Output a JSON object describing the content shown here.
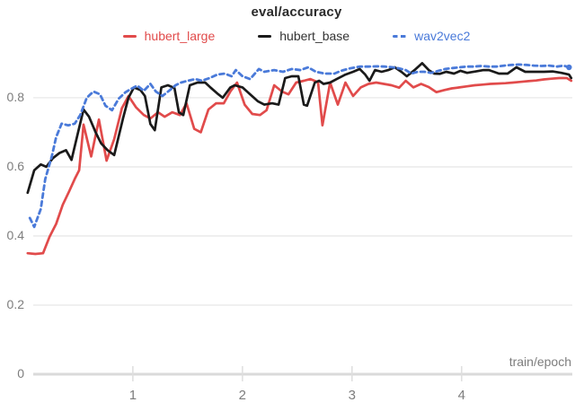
{
  "chart_data": {
    "type": "line",
    "title": "eval/accuracy",
    "xlabel": "train/epoch",
    "xlim": [
      0.05,
      5.01
    ],
    "ylim": [
      0,
      0.927
    ],
    "x_ticks": [
      1,
      2,
      3,
      4
    ],
    "y_ticks": [
      0,
      0.2,
      0.4,
      0.6,
      0.8
    ],
    "grid": true,
    "legend_position": "top",
    "colors": {
      "grid": "#e8e8e8",
      "axis": "#dadada",
      "tick_label": "#7d7d7d"
    },
    "series": [
      {
        "name": "hubert_large",
        "color": "#e14b4b",
        "style": "solid",
        "points": [
          [
            0.04,
            0.35
          ],
          [
            0.11,
            0.348
          ],
          [
            0.18,
            0.35
          ],
          [
            0.24,
            0.398
          ],
          [
            0.3,
            0.435
          ],
          [
            0.36,
            0.49
          ],
          [
            0.42,
            0.53
          ],
          [
            0.47,
            0.565
          ],
          [
            0.51,
            0.59
          ],
          [
            0.55,
            0.722
          ],
          [
            0.62,
            0.63
          ],
          [
            0.69,
            0.737
          ],
          [
            0.76,
            0.618
          ],
          [
            0.83,
            0.68
          ],
          [
            0.9,
            0.77
          ],
          [
            0.96,
            0.805
          ],
          [
            1.03,
            0.772
          ],
          [
            1.1,
            0.75
          ],
          [
            1.16,
            0.74
          ],
          [
            1.23,
            0.758
          ],
          [
            1.29,
            0.745
          ],
          [
            1.36,
            0.758
          ],
          [
            1.43,
            0.75
          ],
          [
            1.49,
            0.784
          ],
          [
            1.56,
            0.71
          ],
          [
            1.62,
            0.7
          ],
          [
            1.69,
            0.766
          ],
          [
            1.76,
            0.784
          ],
          [
            1.83,
            0.784
          ],
          [
            1.89,
            0.818
          ],
          [
            1.95,
            0.844
          ],
          [
            2.02,
            0.78
          ],
          [
            2.09,
            0.753
          ],
          [
            2.16,
            0.75
          ],
          [
            2.22,
            0.764
          ],
          [
            2.29,
            0.836
          ],
          [
            2.36,
            0.818
          ],
          [
            2.42,
            0.81
          ],
          [
            2.49,
            0.844
          ],
          [
            2.56,
            0.849
          ],
          [
            2.62,
            0.854
          ],
          [
            2.69,
            0.845
          ],
          [
            2.73,
            0.72
          ],
          [
            2.8,
            0.844
          ],
          [
            2.87,
            0.78
          ],
          [
            2.94,
            0.844
          ],
          [
            3.01,
            0.805
          ],
          [
            3.08,
            0.83
          ],
          [
            3.15,
            0.84
          ],
          [
            3.22,
            0.844
          ],
          [
            3.29,
            0.84
          ],
          [
            3.36,
            0.836
          ],
          [
            3.43,
            0.829
          ],
          [
            3.49,
            0.849
          ],
          [
            3.56,
            0.83
          ],
          [
            3.63,
            0.84
          ],
          [
            3.7,
            0.831
          ],
          [
            3.77,
            0.816
          ],
          [
            3.84,
            0.822
          ],
          [
            3.91,
            0.827
          ],
          [
            3.98,
            0.83
          ],
          [
            4.05,
            0.833
          ],
          [
            4.12,
            0.836
          ],
          [
            4.19,
            0.838
          ],
          [
            4.26,
            0.84
          ],
          [
            4.33,
            0.841
          ],
          [
            4.4,
            0.842
          ],
          [
            4.47,
            0.844
          ],
          [
            4.54,
            0.846
          ],
          [
            4.61,
            0.848
          ],
          [
            4.68,
            0.85
          ],
          [
            4.75,
            0.853
          ],
          [
            4.82,
            0.855
          ],
          [
            4.89,
            0.857
          ],
          [
            4.96,
            0.857
          ],
          [
            5.0,
            0.849
          ]
        ]
      },
      {
        "name": "hubert_base",
        "color": "#1a1a1a",
        "style": "solid",
        "points": [
          [
            0.04,
            0.525
          ],
          [
            0.1,
            0.59
          ],
          [
            0.16,
            0.607
          ],
          [
            0.21,
            0.6
          ],
          [
            0.27,
            0.625
          ],
          [
            0.33,
            0.64
          ],
          [
            0.39,
            0.648
          ],
          [
            0.44,
            0.62
          ],
          [
            0.5,
            0.7
          ],
          [
            0.55,
            0.766
          ],
          [
            0.6,
            0.745
          ],
          [
            0.66,
            0.7
          ],
          [
            0.71,
            0.668
          ],
          [
            0.77,
            0.648
          ],
          [
            0.83,
            0.634
          ],
          [
            0.91,
            0.74
          ],
          [
            0.96,
            0.8
          ],
          [
            1.01,
            0.83
          ],
          [
            1.07,
            0.822
          ],
          [
            1.11,
            0.805
          ],
          [
            1.16,
            0.724
          ],
          [
            1.2,
            0.706
          ],
          [
            1.26,
            0.83
          ],
          [
            1.32,
            0.836
          ],
          [
            1.38,
            0.828
          ],
          [
            1.42,
            0.758
          ],
          [
            1.46,
            0.75
          ],
          [
            1.52,
            0.836
          ],
          [
            1.59,
            0.844
          ],
          [
            1.66,
            0.844
          ],
          [
            1.71,
            0.829
          ],
          [
            1.78,
            0.81
          ],
          [
            1.82,
            0.8
          ],
          [
            1.89,
            0.83
          ],
          [
            1.93,
            0.836
          ],
          [
            2.0,
            0.83
          ],
          [
            2.07,
            0.81
          ],
          [
            2.14,
            0.79
          ],
          [
            2.2,
            0.78
          ],
          [
            2.27,
            0.784
          ],
          [
            2.33,
            0.78
          ],
          [
            2.39,
            0.857
          ],
          [
            2.45,
            0.862
          ],
          [
            2.51,
            0.862
          ],
          [
            2.56,
            0.78
          ],
          [
            2.59,
            0.777
          ],
          [
            2.66,
            0.844
          ],
          [
            2.7,
            0.849
          ],
          [
            2.74,
            0.84
          ],
          [
            2.8,
            0.844
          ],
          [
            2.86,
            0.854
          ],
          [
            2.94,
            0.867
          ],
          [
            3.01,
            0.875
          ],
          [
            3.07,
            0.883
          ],
          [
            3.12,
            0.867
          ],
          [
            3.16,
            0.849
          ],
          [
            3.21,
            0.88
          ],
          [
            3.27,
            0.875
          ],
          [
            3.33,
            0.88
          ],
          [
            3.39,
            0.888
          ],
          [
            3.45,
            0.875
          ],
          [
            3.5,
            0.862
          ],
          [
            3.57,
            0.88
          ],
          [
            3.64,
            0.9
          ],
          [
            3.7,
            0.88
          ],
          [
            3.75,
            0.87
          ],
          [
            3.8,
            0.869
          ],
          [
            3.86,
            0.875
          ],
          [
            3.93,
            0.87
          ],
          [
            3.99,
            0.878
          ],
          [
            4.05,
            0.872
          ],
          [
            4.13,
            0.876
          ],
          [
            4.2,
            0.88
          ],
          [
            4.25,
            0.88
          ],
          [
            4.34,
            0.87
          ],
          [
            4.42,
            0.87
          ],
          [
            4.5,
            0.888
          ],
          [
            4.58,
            0.875
          ],
          [
            4.66,
            0.875
          ],
          [
            4.75,
            0.875
          ],
          [
            4.83,
            0.876
          ],
          [
            4.91,
            0.872
          ],
          [
            4.98,
            0.867
          ],
          [
            5.0,
            0.857
          ]
        ]
      },
      {
        "name": "wav2vec2",
        "color": "#4a7ad9",
        "style": "dashed",
        "points": [
          [
            0.06,
            0.452
          ],
          [
            0.1,
            0.426
          ],
          [
            0.16,
            0.478
          ],
          [
            0.2,
            0.564
          ],
          [
            0.26,
            0.63
          ],
          [
            0.3,
            0.686
          ],
          [
            0.35,
            0.725
          ],
          [
            0.41,
            0.72
          ],
          [
            0.47,
            0.725
          ],
          [
            0.52,
            0.75
          ],
          [
            0.58,
            0.8
          ],
          [
            0.64,
            0.818
          ],
          [
            0.7,
            0.81
          ],
          [
            0.75,
            0.777
          ],
          [
            0.81,
            0.764
          ],
          [
            0.87,
            0.797
          ],
          [
            0.93,
            0.815
          ],
          [
            0.98,
            0.825
          ],
          [
            1.04,
            0.835
          ],
          [
            1.1,
            0.82
          ],
          [
            1.16,
            0.84
          ],
          [
            1.21,
            0.818
          ],
          [
            1.27,
            0.805
          ],
          [
            1.33,
            0.82
          ],
          [
            1.39,
            0.836
          ],
          [
            1.44,
            0.844
          ],
          [
            1.5,
            0.849
          ],
          [
            1.57,
            0.854
          ],
          [
            1.63,
            0.849
          ],
          [
            1.7,
            0.857
          ],
          [
            1.77,
            0.867
          ],
          [
            1.84,
            0.87
          ],
          [
            1.9,
            0.862
          ],
          [
            1.94,
            0.88
          ],
          [
            2.0,
            0.862
          ],
          [
            2.07,
            0.854
          ],
          [
            2.15,
            0.883
          ],
          [
            2.2,
            0.875
          ],
          [
            2.29,
            0.88
          ],
          [
            2.37,
            0.875
          ],
          [
            2.45,
            0.883
          ],
          [
            2.53,
            0.88
          ],
          [
            2.6,
            0.888
          ],
          [
            2.67,
            0.875
          ],
          [
            2.75,
            0.87
          ],
          [
            2.84,
            0.87
          ],
          [
            2.9,
            0.878
          ],
          [
            2.98,
            0.885
          ],
          [
            3.07,
            0.89
          ],
          [
            3.15,
            0.89
          ],
          [
            3.23,
            0.891
          ],
          [
            3.3,
            0.89
          ],
          [
            3.37,
            0.888
          ],
          [
            3.43,
            0.885
          ],
          [
            3.49,
            0.88
          ],
          [
            3.54,
            0.87
          ],
          [
            3.6,
            0.875
          ],
          [
            3.66,
            0.875
          ],
          [
            3.72,
            0.872
          ],
          [
            3.79,
            0.878
          ],
          [
            3.85,
            0.883
          ],
          [
            3.92,
            0.886
          ],
          [
            3.98,
            0.888
          ],
          [
            4.05,
            0.89
          ],
          [
            4.11,
            0.89
          ],
          [
            4.18,
            0.892
          ],
          [
            4.25,
            0.89
          ],
          [
            4.32,
            0.89
          ],
          [
            4.39,
            0.893
          ],
          [
            4.46,
            0.895
          ],
          [
            4.52,
            0.896
          ],
          [
            4.59,
            0.895
          ],
          [
            4.66,
            0.893
          ],
          [
            4.73,
            0.892
          ],
          [
            4.8,
            0.893
          ],
          [
            4.87,
            0.89
          ],
          [
            4.93,
            0.893
          ],
          [
            4.98,
            0.888
          ]
        ]
      }
    ]
  }
}
